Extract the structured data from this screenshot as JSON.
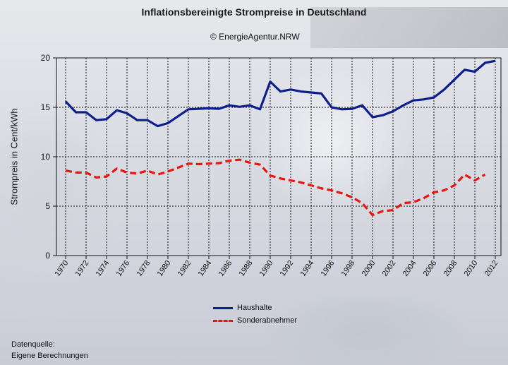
{
  "title": "Inflationsbereinigte Strompreise in Deutschland",
  "copyright": "© EnergieAgentur.NRW",
  "source_lines": [
    "Datenquelle:",
    "Eigene Berechnungen"
  ],
  "colors": {
    "haushalte": "#0d1f8c",
    "sonderabnehmer": "#e8160e",
    "grid": "#111111"
  },
  "chart_data": {
    "type": "line",
    "title": "Inflationsbereinigte Strompreise in Deutschland",
    "xlabel": "",
    "ylabel": "Strompreis in Cent/kWh",
    "xlim": [
      1970,
      2012
    ],
    "ylim": [
      0,
      20
    ],
    "yticks": [
      0,
      5,
      10,
      15,
      20
    ],
    "xticks": [
      1970,
      1972,
      1974,
      1976,
      1978,
      1980,
      1982,
      1984,
      1986,
      1988,
      1990,
      1992,
      1994,
      1996,
      1998,
      2000,
      2002,
      2004,
      2006,
      2008,
      2010,
      2012
    ],
    "grid": true,
    "legend_position": "bottom-center",
    "series": [
      {
        "name": "Haushalte",
        "style": "solid",
        "x": [
          1970,
          1971,
          1972,
          1973,
          1974,
          1975,
          1976,
          1977,
          1978,
          1979,
          1980,
          1981,
          1982,
          1983,
          1984,
          1985,
          1986,
          1987,
          1988,
          1989,
          1990,
          1991,
          1992,
          1993,
          1994,
          1995,
          1996,
          1997,
          1998,
          1999,
          2000,
          2001,
          2002,
          2003,
          2004,
          2005,
          2006,
          2007,
          2008,
          2009,
          2010,
          2011,
          2012
        ],
        "values": [
          15.6,
          14.5,
          14.5,
          13.7,
          13.8,
          14.7,
          14.4,
          13.7,
          13.7,
          13.1,
          13.4,
          14.1,
          14.8,
          14.85,
          14.9,
          14.85,
          15.2,
          15.05,
          15.2,
          14.8,
          17.6,
          16.6,
          16.8,
          16.6,
          16.5,
          16.4,
          15.0,
          14.8,
          14.85,
          15.2,
          14.0,
          14.2,
          14.6,
          15.2,
          15.7,
          15.8,
          16.0,
          16.8,
          17.8,
          18.8,
          18.6,
          19.5,
          19.7
        ]
      },
      {
        "name": "Sonderabnehmer",
        "style": "dashed",
        "x": [
          1970,
          1971,
          1972,
          1973,
          1974,
          1975,
          1976,
          1977,
          1978,
          1979,
          1980,
          1981,
          1982,
          1983,
          1984,
          1985,
          1986,
          1987,
          1988,
          1989,
          1990,
          1991,
          1992,
          1993,
          1994,
          1995,
          1996,
          1997,
          1998,
          1999,
          2000,
          2001,
          2002,
          2003,
          2004,
          2005,
          2006,
          2007,
          2008,
          2009,
          2010,
          2011
        ],
        "values": [
          8.6,
          8.4,
          8.4,
          7.9,
          8.0,
          8.8,
          8.4,
          8.3,
          8.6,
          8.2,
          8.5,
          8.9,
          9.3,
          9.25,
          9.3,
          9.35,
          9.6,
          9.7,
          9.4,
          9.2,
          8.1,
          7.8,
          7.6,
          7.4,
          7.1,
          6.8,
          6.6,
          6.3,
          5.9,
          5.3,
          4.1,
          4.5,
          4.6,
          5.3,
          5.4,
          5.8,
          6.4,
          6.6,
          7.1,
          8.2,
          7.6,
          8.2
        ]
      }
    ]
  }
}
